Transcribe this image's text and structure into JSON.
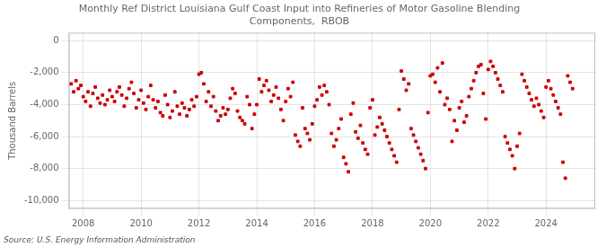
{
  "chart_data": {
    "type": "scatter",
    "title": "Monthly Ref District Louisiana Gulf Coast Input into Refineries of Motor Gasoline Blending\nComponents,  RBOB",
    "ylabel": "Thousand Barrels",
    "annotations": [
      "Source: U.S. Energy Information Administration"
    ],
    "color": "#cc0000",
    "marker": "square",
    "grid": true,
    "xlim": [
      2007.5,
      2025.7
    ],
    "xticks": [
      2008,
      2010,
      2012,
      2014,
      2016,
      2018,
      2020,
      2022,
      2024
    ],
    "ylim": [
      -10500,
      500
    ],
    "yticks": [
      0,
      {
        "value": -2000,
        "label": "-2,000"
      },
      {
        "value": -4000,
        "label": "-4,000"
      },
      {
        "value": -6000,
        "label": "-6,000"
      },
      {
        "value": -8000,
        "label": "-8,000"
      },
      {
        "value": -10000,
        "label": "-10,000"
      }
    ],
    "x": [
      2007.583,
      2007.667,
      2007.75,
      2007.833,
      2007.917,
      2008.0,
      2008.083,
      2008.167,
      2008.25,
      2008.333,
      2008.417,
      2008.5,
      2008.583,
      2008.667,
      2008.75,
      2008.833,
      2008.917,
      2009.0,
      2009.083,
      2009.167,
      2009.25,
      2009.333,
      2009.417,
      2009.5,
      2009.583,
      2009.667,
      2009.75,
      2009.833,
      2009.917,
      2010.0,
      2010.083,
      2010.167,
      2010.25,
      2010.333,
      2010.417,
      2010.5,
      2010.583,
      2010.667,
      2010.75,
      2010.833,
      2010.917,
      2011.0,
      2011.083,
      2011.167,
      2011.25,
      2011.333,
      2011.417,
      2011.5,
      2011.583,
      2011.667,
      2011.75,
      2011.833,
      2011.917,
      2012.0,
      2012.083,
      2012.167,
      2012.25,
      2012.333,
      2012.417,
      2012.5,
      2012.583,
      2012.667,
      2012.75,
      2012.833,
      2012.917,
      2013.0,
      2013.083,
      2013.167,
      2013.25,
      2013.333,
      2013.417,
      2013.5,
      2013.583,
      2013.667,
      2013.75,
      2013.833,
      2013.917,
      2014.0,
      2014.083,
      2014.167,
      2014.25,
      2014.333,
      2014.417,
      2014.5,
      2014.583,
      2014.667,
      2014.75,
      2014.833,
      2014.917,
      2015.0,
      2015.083,
      2015.167,
      2015.25,
      2015.333,
      2015.417,
      2015.5,
      2015.583,
      2015.667,
      2015.75,
      2015.833,
      2015.917,
      2016.0,
      2016.083,
      2016.167,
      2016.25,
      2016.333,
      2016.417,
      2016.5,
      2016.583,
      2016.667,
      2016.75,
      2016.833,
      2016.917,
      2017.0,
      2017.083,
      2017.167,
      2017.25,
      2017.333,
      2017.417,
      2017.5,
      2017.583,
      2017.667,
      2017.75,
      2017.833,
      2017.917,
      2018.0,
      2018.083,
      2018.167,
      2018.25,
      2018.333,
      2018.417,
      2018.5,
      2018.583,
      2018.667,
      2018.75,
      2018.833,
      2018.917,
      2019.0,
      2019.083,
      2019.167,
      2019.25,
      2019.333,
      2019.417,
      2019.5,
      2019.583,
      2019.667,
      2019.75,
      2019.833,
      2019.917,
      2020.0,
      2020.083,
      2020.167,
      2020.25,
      2020.333,
      2020.417,
      2020.5,
      2020.583,
      2020.667,
      2020.75,
      2020.833,
      2020.917,
      2021.0,
      2021.083,
      2021.167,
      2021.25,
      2021.333,
      2021.417,
      2021.5,
      2021.583,
      2021.667,
      2021.75,
      2021.833,
      2021.917,
      2022.0,
      2022.083,
      2022.167,
      2022.25,
      2022.333,
      2022.417,
      2022.5,
      2022.583,
      2022.667,
      2022.75,
      2022.833,
      2022.917,
      2023.0,
      2023.083,
      2023.167,
      2023.25,
      2023.333,
      2023.417,
      2023.5,
      2023.583,
      2023.667,
      2023.75,
      2023.833,
      2023.917,
      2024.0,
      2024.083,
      2024.167,
      2024.25,
      2024.333,
      2024.417,
      2024.5,
      2024.583,
      2024.667,
      2024.75,
      2024.833,
      2024.917
    ],
    "values": [
      -2700,
      -3200,
      -2500,
      -3000,
      -2800,
      -3500,
      -3800,
      -3200,
      -4100,
      -3300,
      -2900,
      -3600,
      -3900,
      -3400,
      -4000,
      -3700,
      -3100,
      -3500,
      -3800,
      -3200,
      -2900,
      -3400,
      -4100,
      -3600,
      -3000,
      -2600,
      -3300,
      -4200,
      -3700,
      -3100,
      -3900,
      -4300,
      -3500,
      -2800,
      -3700,
      -4200,
      -3800,
      -4500,
      -4700,
      -3400,
      -4000,
      -4800,
      -4400,
      -3200,
      -4100,
      -4600,
      -3900,
      -4200,
      -4700,
      -4300,
      -3700,
      -4100,
      -3500,
      -2100,
      -2000,
      -2700,
      -3800,
      -3200,
      -4100,
      -3500,
      -4400,
      -5000,
      -4700,
      -4200,
      -4600,
      -4300,
      -3600,
      -3000,
      -3300,
      -4400,
      -4800,
      -5000,
      -5200,
      -3500,
      -4000,
      -5500,
      -4600,
      -4000,
      -2400,
      -3200,
      -2800,
      -2500,
      -3100,
      -3800,
      -3400,
      -2900,
      -3600,
      -4300,
      -5000,
      -3800,
      -3000,
      -3500,
      -2600,
      -5900,
      -6300,
      -6600,
      -4200,
      -5500,
      -5800,
      -6200,
      -5200,
      -4100,
      -3700,
      -2900,
      -3400,
      -2800,
      -3200,
      -4000,
      -5800,
      -6600,
      -6200,
      -5500,
      -4900,
      -7300,
      -7700,
      -8200,
      -4600,
      -3900,
      -5700,
      -6100,
      -5300,
      -6400,
      -6800,
      -7100,
      -4200,
      -3700,
      -5900,
      -5400,
      -4800,
      -5200,
      -5600,
      -6000,
      -6400,
      -6800,
      -7200,
      -7600,
      -4300,
      -1900,
      -2400,
      -3100,
      -2700,
      -5500,
      -5900,
      -6300,
      -6700,
      -7100,
      -7500,
      -8000,
      -4500,
      -2200,
      -2100,
      -2600,
      -1700,
      -3200,
      -1400,
      -4000,
      -3600,
      -4300,
      -6300,
      -5000,
      -5600,
      -4200,
      -3800,
      -5100,
      -4700,
      -3500,
      -3000,
      -2500,
      -2000,
      -1600,
      -1500,
      -3300,
      -4900,
      -1800,
      -1300,
      -1600,
      -2000,
      -2400,
      -2800,
      -3200,
      -6000,
      -6400,
      -6800,
      -7200,
      -8000,
      -6600,
      -5800,
      -2100,
      -2500,
      -2900,
      -3300,
      -3700,
      -4100,
      -3600,
      -4000,
      -4400,
      -4800,
      -2900,
      -2500,
      -3000,
      -3400,
      -3800,
      -4200,
      -4600,
      -7600,
      -8600,
      -2200,
      -2600,
      -3000
    ]
  }
}
